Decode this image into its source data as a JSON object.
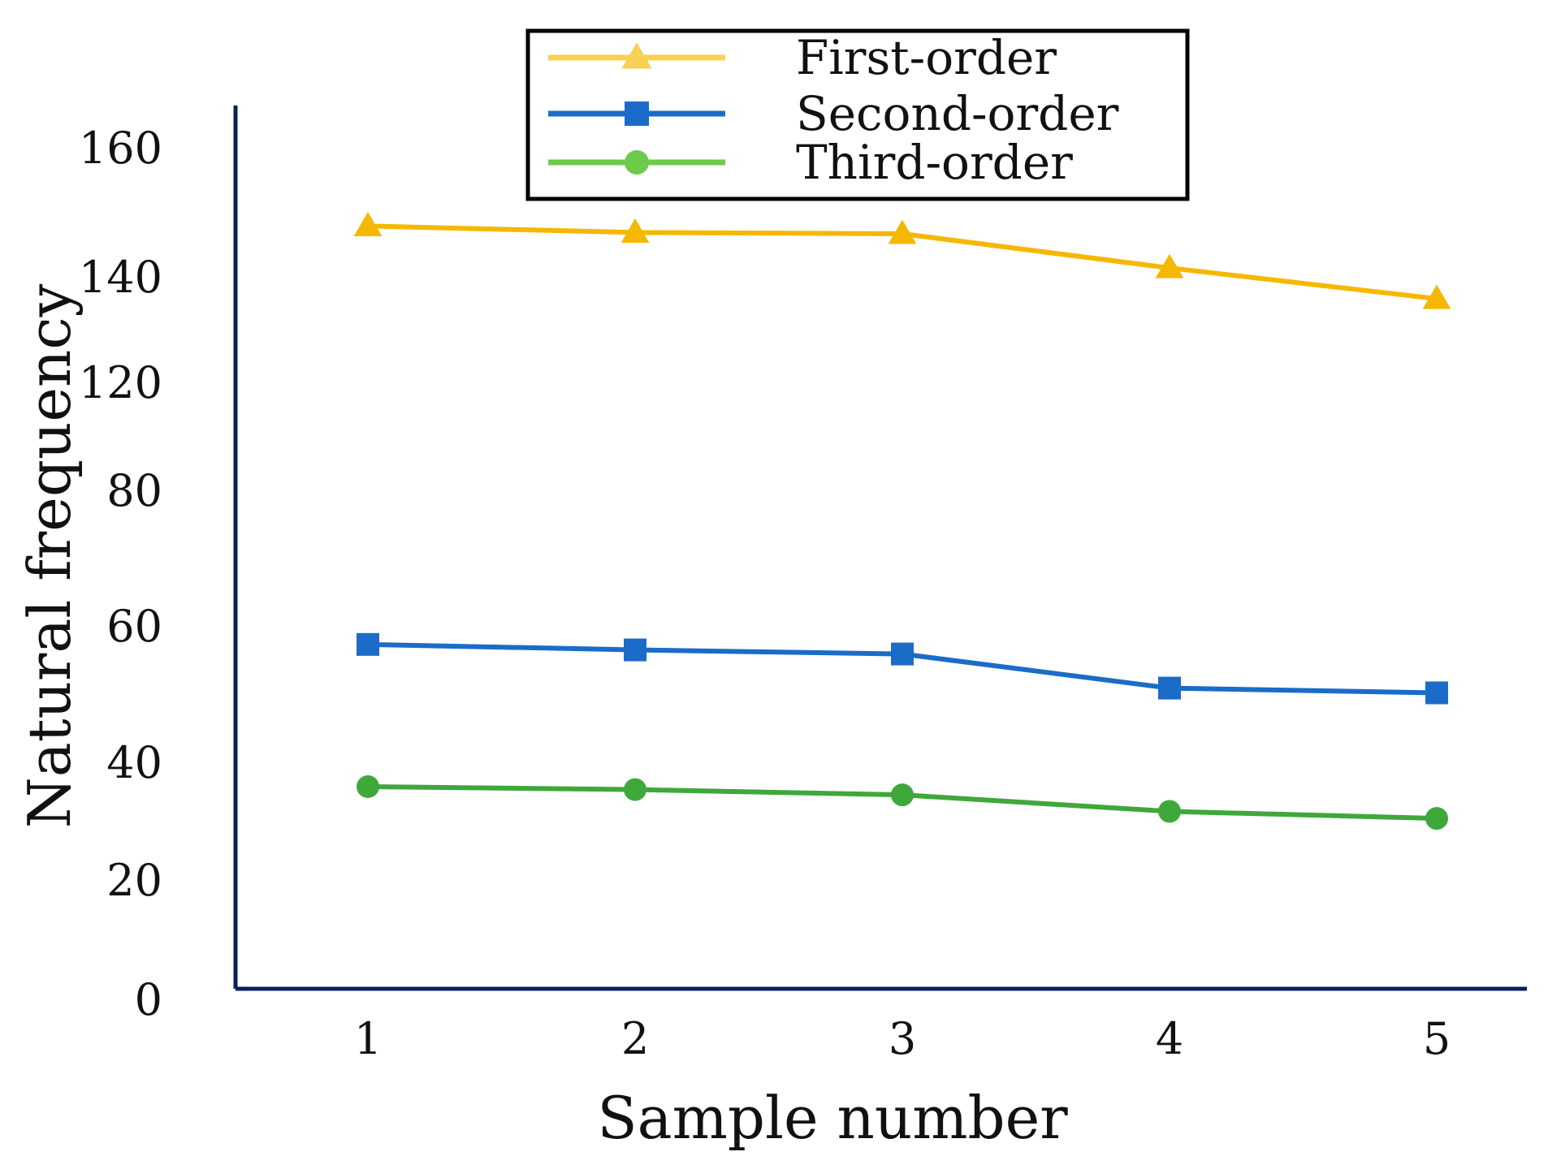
{
  "chart_data": {
    "type": "line",
    "xlabel": "Sample number",
    "ylabel": "Natural frequency",
    "x": [
      1,
      2,
      3,
      4,
      5
    ],
    "y_ticks": [
      "0",
      "20",
      "40",
      "60",
      "80",
      "120",
      "140",
      "160"
    ],
    "x_ticks": [
      "1",
      "2",
      "3",
      "4",
      "5"
    ],
    "grid": false,
    "legend_position": "top-center",
    "series": [
      {
        "name": "First-order",
        "marker": "triangle",
        "color": "#F5B800",
        "legend_color": "#F7D054",
        "values": [
          148,
          147,
          146.8,
          141.5,
          136
        ]
      },
      {
        "name": "Second-order",
        "marker": "square",
        "color": "#1A6CC8",
        "legend_color": "#1A6CC8",
        "values": [
          57.4,
          56.6,
          56,
          51,
          50.3
        ]
      },
      {
        "name": "Third-order",
        "marker": "circle",
        "color": "#3EA83A",
        "legend_color": "#6CCB4A",
        "values": [
          36,
          35.5,
          34.6,
          31.8,
          30.6
        ]
      }
    ],
    "axis_color": "#0B1F5C"
  }
}
